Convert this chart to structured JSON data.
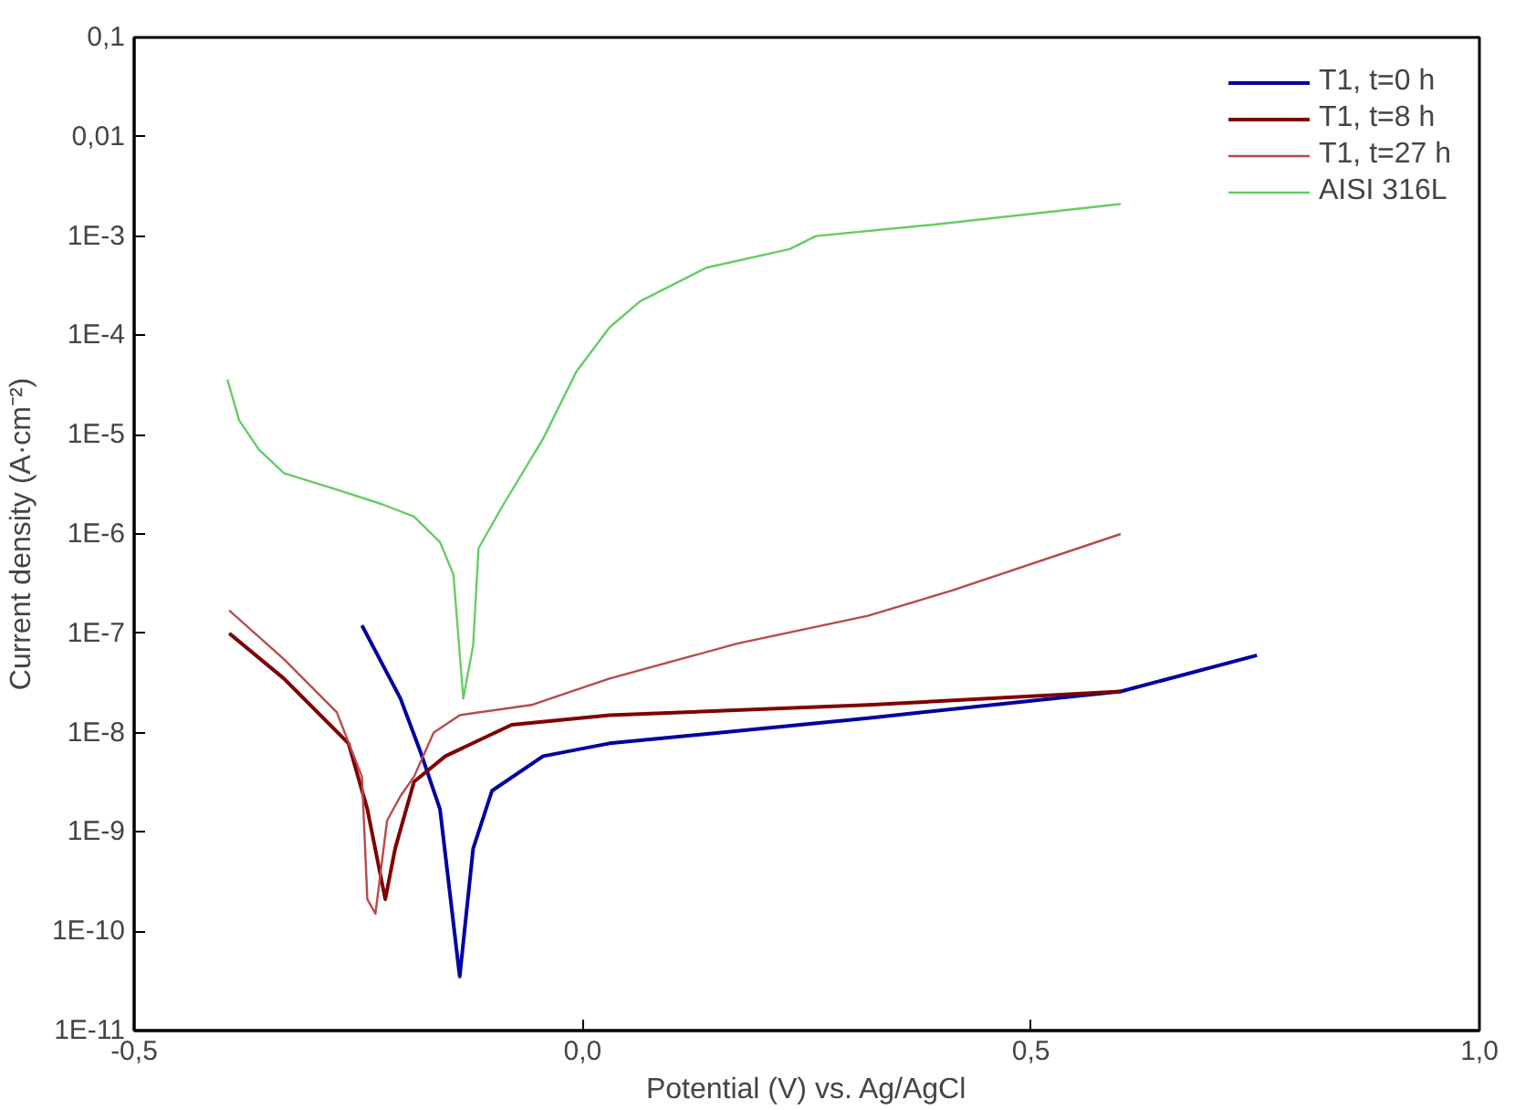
{
  "chart_data": {
    "type": "line",
    "xlabel": "Potential (V) vs. Ag/AgCl",
    "ylabel": "Current density (A·cm⁻²)",
    "log": "y",
    "grid": false,
    "legend": "top right",
    "line_style": "solid",
    "xlim": [
      -0.5,
      1.0
    ],
    "xticks": [
      {
        "value": -0.5,
        "label": "-0,5"
      },
      {
        "value": 0.0,
        "label": "0,0"
      },
      {
        "value": 0.5,
        "label": "0,5"
      },
      {
        "value": 1.0,
        "label": "1,0"
      }
    ],
    "ylim": [
      1e-11,
      0.1
    ],
    "yticks": [
      {
        "value": 0.1,
        "label": "0,1"
      },
      {
        "value": 0.01,
        "label": "0,01"
      },
      {
        "value": 0.001,
        "label": "1E-3"
      },
      {
        "value": 0.0001,
        "label": "1E-4"
      },
      {
        "value": 1e-05,
        "label": "1E-5"
      },
      {
        "value": 1e-06,
        "label": "1E-6"
      },
      {
        "value": 1e-07,
        "label": "1E-7"
      },
      {
        "value": 1e-08,
        "label": "1E-8"
      },
      {
        "value": 1e-09,
        "label": "1E-9"
      },
      {
        "value": 1e-10,
        "label": "1E-10"
      },
      {
        "value": 1e-11,
        "label": "1E-11"
      }
    ],
    "series": [
      {
        "name": "T1, t=0 h",
        "color": "#0000a0",
        "x": [
          -0.246,
          -0.203,
          -0.181,
          -0.159,
          -0.137,
          -0.122,
          -0.101,
          -0.044,
          0.03,
          0.318,
          0.6,
          0.752
        ],
        "values": [
          1.2e-07,
          2.2e-08,
          6.5e-09,
          1.7e-09,
          3.5e-11,
          6.8e-10,
          2.6e-09,
          5.8e-09,
          7.8e-09,
          1.4e-08,
          2.6e-08,
          6e-08
        ]
      },
      {
        "name": "T1, t=8 h",
        "color": "#800000",
        "x": [
          -0.394,
          -0.333,
          -0.261,
          -0.24,
          -0.22,
          -0.209,
          -0.188,
          -0.153,
          -0.079,
          0.03,
          0.318,
          0.6
        ],
        "values": [
          1e-07,
          3.5e-08,
          7.8e-09,
          1.7e-09,
          2.1e-10,
          6.8e-10,
          3.2e-09,
          5.8e-09,
          1.2e-08,
          1.5e-08,
          1.9e-08,
          2.6e-08
        ]
      },
      {
        "name": "T1, t=27 h",
        "color": "#b84a4a",
        "x": [
          -0.394,
          -0.333,
          -0.274,
          -0.246,
          -0.24,
          -0.231,
          -0.218,
          -0.203,
          -0.188,
          -0.166,
          -0.137,
          -0.057,
          0.03,
          0.173,
          0.318,
          0.412,
          0.6
        ],
        "values": [
          1.7e-07,
          5.5e-08,
          1.6e-08,
          3.6e-09,
          2.1e-10,
          1.5e-10,
          1.3e-09,
          2.3e-09,
          3.6e-09,
          1e-08,
          1.5e-08,
          1.9e-08,
          3.5e-08,
          7.9e-08,
          1.5e-07,
          2.7e-07,
          1e-06
        ]
      },
      {
        "name": "AISI 316L",
        "color": "#66cc66",
        "x": [
          -0.396,
          -0.383,
          -0.361,
          -0.333,
          -0.274,
          -0.224,
          -0.188,
          -0.159,
          -0.144,
          -0.133,
          -0.122,
          -0.116,
          -0.088,
          -0.044,
          -0.007,
          0.03,
          0.064,
          0.138,
          0.231,
          0.26,
          0.39,
          0.6
        ],
        "values": [
          3.6e-05,
          1.4e-05,
          7.1e-06,
          4.1e-06,
          2.8e-06,
          2e-06,
          1.5e-06,
          8.3e-07,
          3.9e-07,
          2.2e-08,
          7.6e-08,
          7.2e-07,
          2e-06,
          9.1e-06,
          4.3e-05,
          0.00012,
          0.00022,
          0.00048,
          0.00074,
          0.001,
          0.0013,
          0.0021
        ]
      }
    ]
  }
}
